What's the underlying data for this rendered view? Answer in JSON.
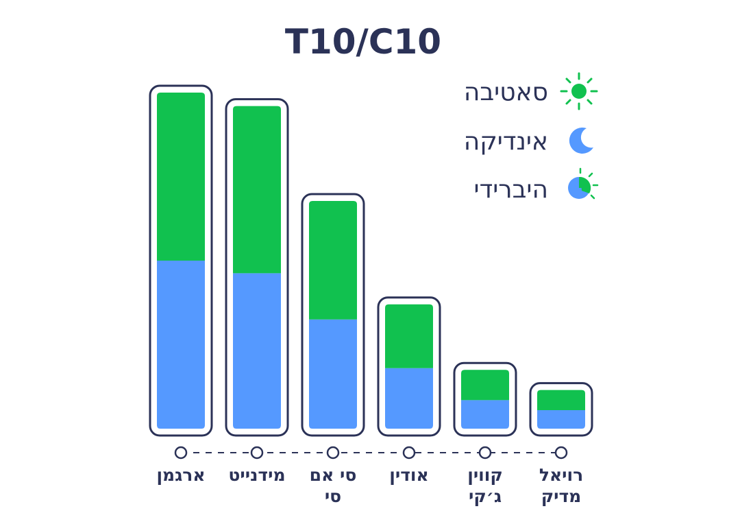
{
  "chart_data": {
    "type": "bar",
    "stacked": true,
    "title": "T10/C10",
    "categories": [
      [
        "ארגמן"
      ],
      [
        "מידנייט"
      ],
      [
        "סי אם",
        "סי"
      ],
      [
        "אודין"
      ],
      [
        "קווין",
        "ג׳קי"
      ],
      [
        "רויאל",
        "מדיק"
      ]
    ],
    "series": [
      {
        "name": "אינדיקה",
        "color": "#5599ff",
        "icon": "moon-icon",
        "values": [
          10,
          9.25,
          6.5,
          3.6,
          1.7,
          1.1
        ]
      },
      {
        "name": "סאטיבה",
        "color": "#11c14f",
        "icon": "sun-icon",
        "values": [
          10,
          9.95,
          7.05,
          3.8,
          1.8,
          1.2
        ]
      }
    ],
    "legend": {
      "placement": "top-right",
      "items": [
        {
          "label": "סאטיבה",
          "icon": "sun-icon"
        },
        {
          "label": "אינדיקה",
          "icon": "moon-icon"
        },
        {
          "label": "היברידי",
          "icon": "hybrid-icon"
        }
      ]
    },
    "ylim": [
      0,
      20
    ],
    "grid": false,
    "xlabel": "",
    "ylabel": "",
    "colors": {
      "text": "#2b3257",
      "frame": "#2b3257"
    }
  }
}
